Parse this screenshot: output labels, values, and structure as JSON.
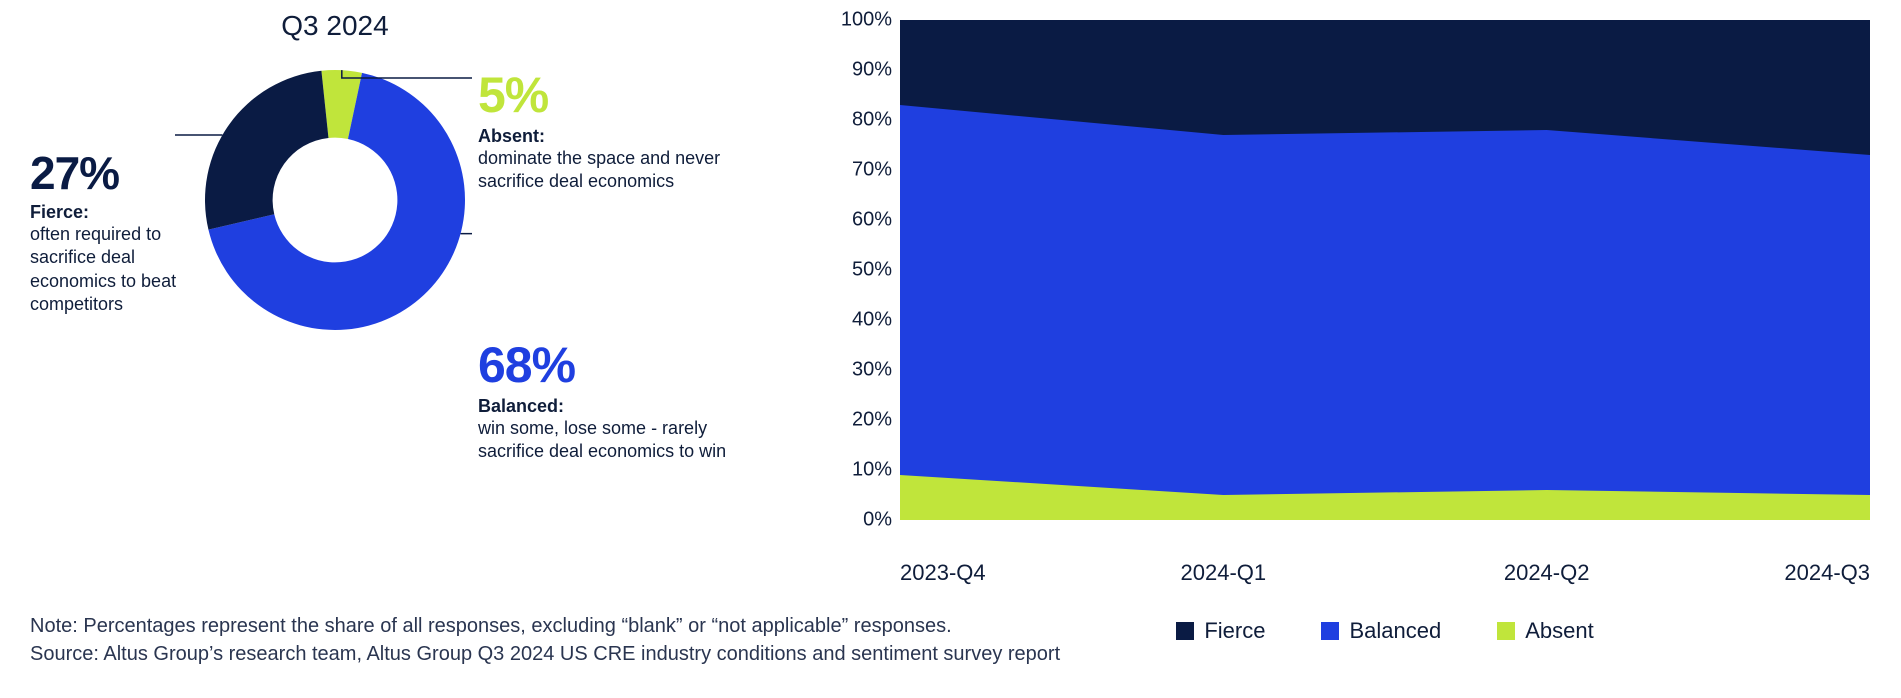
{
  "colors": {
    "fierce": "#0a1b44",
    "balanced": "#1f3fe0",
    "absent": "#c0e53b",
    "text": "#0f1d3a",
    "leader": "#0a1b44",
    "background": "#ffffff"
  },
  "donut": {
    "title": "Q3 2024",
    "type": "donut",
    "inner_radius_ratio": 0.48,
    "slices": [
      {
        "key": "absent",
        "value": 5,
        "color": "#c0e53b",
        "start_deg": -6,
        "label_title": "Absent:",
        "label_desc": "dominate the space and never sacrifice deal economics"
      },
      {
        "key": "balanced",
        "value": 68,
        "color": "#1f3fe0",
        "label_title": "Balanced:",
        "label_desc": "win some, lose some - rarely sacrifice deal economics to win"
      },
      {
        "key": "fierce",
        "value": 27,
        "color": "#0a1b44",
        "label_title": "Fierce:",
        "label_desc": "often required to sacrifice deal economics to beat competitors"
      }
    ],
    "callout_pct_fontsize": 50,
    "callout_label_fontsize": 18
  },
  "area": {
    "type": "stacked-area",
    "y_label_suffix": "%",
    "ylim": [
      0,
      100
    ],
    "ytick_step": 10,
    "x_categories": [
      "2023-Q4",
      "2024-Q1",
      "2024-Q2",
      "2024-Q3"
    ],
    "series": [
      {
        "key": "absent",
        "label": "Absent",
        "color": "#c0e53b",
        "values": [
          9,
          5,
          6,
          5
        ]
      },
      {
        "key": "balanced",
        "label": "Balanced",
        "color": "#1f3fe0",
        "values": [
          74,
          72,
          72,
          68
        ]
      },
      {
        "key": "fierce",
        "label": "Fierce",
        "color": "#0a1b44",
        "values": [
          17,
          23,
          22,
          27
        ]
      }
    ],
    "legend_order": [
      "fierce",
      "balanced",
      "absent"
    ],
    "axis_fontsize": 20,
    "legend_fontsize": 22
  },
  "footnote": {
    "line1": "Note: Percentages represent the share of all responses, excluding “blank” or “not applicable” responses.",
    "line2": "Source: Altus Group’s research team, Altus Group Q3 2024 US CRE industry conditions and sentiment survey report"
  }
}
